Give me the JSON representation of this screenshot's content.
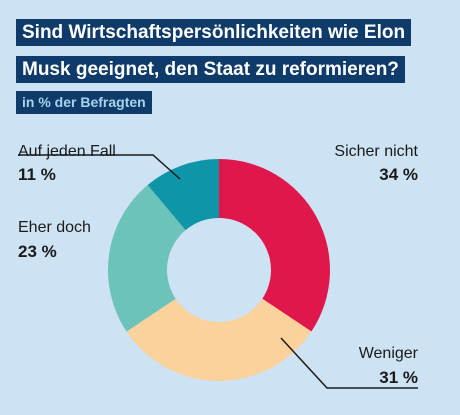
{
  "header": {
    "title_line1": "Sind Wirtschaftspersönlichkeiten wie Elon",
    "title_line2": "Musk geeignet, den Staat zu reformieren?",
    "subtitle": "in % der Befragten"
  },
  "chart_data": {
    "type": "pie",
    "donut": true,
    "title": "Sind Wirtschaftspersönlichkeiten wie Elon Musk geeignet, den Staat zu reformieren?",
    "subtitle": "in % der Befragten",
    "unit": "%",
    "slices": [
      {
        "label": "Sicher nicht",
        "value": 34,
        "display": "34 %",
        "color": "#e0174a"
      },
      {
        "label": "Weniger",
        "value": 31,
        "display": "31 %",
        "color": "#fbd19c"
      },
      {
        "label": "Eher doch",
        "value": 23,
        "display": "23 %",
        "color": "#6cc3ba"
      },
      {
        "label": "Auf jeden Fall",
        "value": 11,
        "display": "11 %",
        "color": "#0f95a8"
      }
    ]
  }
}
